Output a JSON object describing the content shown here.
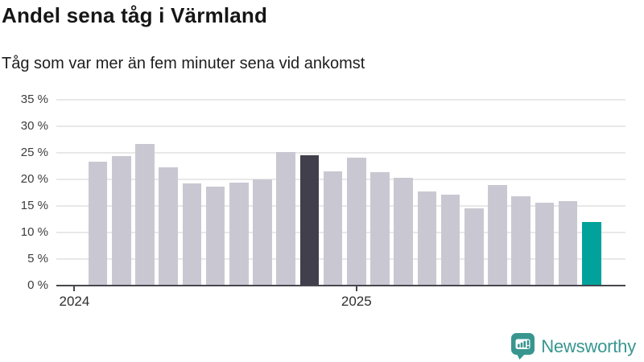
{
  "title": "Andel sena tåg i Värmland",
  "subtitle": "Tåg som var mer än fem minuter sena vid ankomst",
  "branding": {
    "logo_text": "Newsworthy",
    "logo_color": "#38968f"
  },
  "chart_data": {
    "type": "bar",
    "title": "Andel sena tåg i Värmland",
    "subtitle": "Tåg som var mer än fem minuter sena vid ankomst",
    "unit": "%",
    "values": [
      23.3,
      24.4,
      26.6,
      22.3,
      19.2,
      18.6,
      19.4,
      20.0,
      25.1,
      24.5,
      21.5,
      24.1,
      21.4,
      20.3,
      17.7,
      17.1,
      14.6,
      19.0,
      16.8,
      15.6,
      15.9,
      11.9
    ],
    "highlight_dark_index": 9,
    "highlight_accent_index": 21,
    "colors": {
      "bar": "#c9c8d2",
      "highlight_dark": "#403f4b",
      "highlight_accent": "#00a29b",
      "grid": "#e8e8e8",
      "axis": "#47464e"
    },
    "ylim": [
      0,
      35
    ],
    "grid": true,
    "legend": "none",
    "y_ticks": [
      {
        "value": 35,
        "label": "35 %"
      },
      {
        "value": 30,
        "label": "30 %"
      },
      {
        "value": 25,
        "label": "25 %"
      },
      {
        "value": 20,
        "label": "20 %"
      },
      {
        "value": 15,
        "label": "15 %"
      },
      {
        "value": 10,
        "label": "10 %"
      },
      {
        "value": 5,
        "label": "5 %"
      },
      {
        "value": 0,
        "label": "0 %"
      }
    ],
    "x_ticks": [
      {
        "slot": 0,
        "label": "2024"
      },
      {
        "slot": 12,
        "label": "2025"
      }
    ]
  }
}
